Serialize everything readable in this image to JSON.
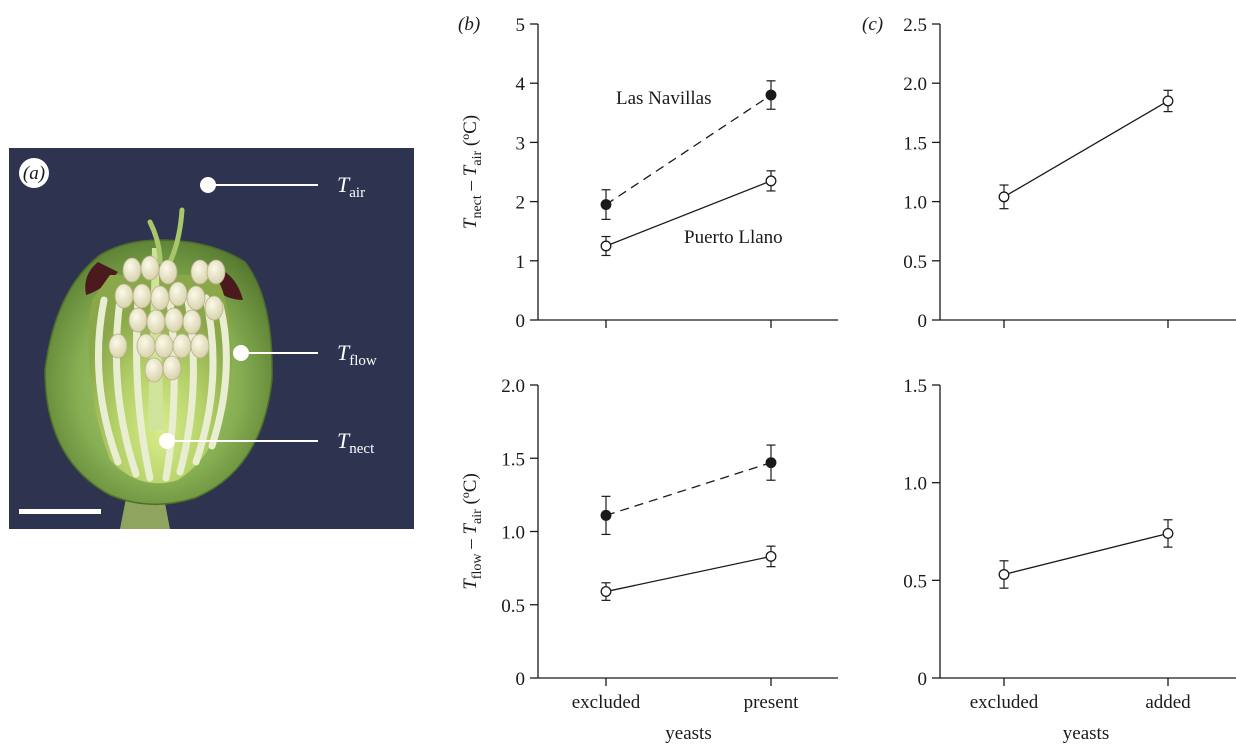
{
  "panel_a": {
    "label": "(a)",
    "markers": [
      {
        "symbol": "T",
        "sub": "air"
      },
      {
        "symbol": "T",
        "sub": "flow"
      },
      {
        "symbol": "T",
        "sub": "nect"
      }
    ],
    "colors": {
      "background": "#2e3350",
      "petal": "#7ea84c",
      "anther": "#ece8c8",
      "blotch": "#4a1a1e"
    }
  },
  "chart_data": [
    {
      "id": "b_top",
      "type": "line",
      "panel_label": "(b)",
      "categories": [
        "excluded",
        "present"
      ],
      "ylabel": {
        "symbol1": "T",
        "sub1": "nect",
        "minus": " – ",
        "symbol2": "T",
        "sub2": "air",
        "unit": " (ºC)"
      },
      "ylim": [
        0,
        5
      ],
      "yticks": [
        0,
        1,
        2,
        3,
        4,
        5
      ],
      "ytick_labels": [
        "0",
        "1",
        "2",
        "3",
        "4",
        "5"
      ],
      "show_xtick_labels": false,
      "series": [
        {
          "name": "Las Navillas",
          "marker": "filled",
          "line": "dashed",
          "values": [
            1.95,
            3.8
          ],
          "errors": [
            0.25,
            0.24
          ]
        },
        {
          "name": "Puerto Llano",
          "marker": "open",
          "line": "solid",
          "values": [
            1.25,
            2.35
          ],
          "errors": [
            0.16,
            0.17
          ]
        }
      ]
    },
    {
      "id": "c_top",
      "type": "line",
      "panel_label": "(c)",
      "categories": [
        "excluded",
        "added"
      ],
      "ylim": [
        0,
        2.5
      ],
      "yticks": [
        0,
        0.5,
        1,
        1.5,
        2,
        2.5
      ],
      "ytick_labels": [
        "0",
        "0.5",
        "1.0",
        "1.5",
        "2.0",
        "2.5"
      ],
      "show_xtick_labels": false,
      "series": [
        {
          "marker": "open",
          "line": "solid",
          "values": [
            1.04,
            1.85
          ],
          "errors": [
            0.1,
            0.09
          ]
        }
      ]
    },
    {
      "id": "b_bottom",
      "type": "line",
      "categories": [
        "excluded",
        "present"
      ],
      "xlabel": "yeasts",
      "ylabel": {
        "symbol1": "T",
        "sub1": "flow",
        "minus": " – ",
        "symbol2": "T",
        "sub2": "air",
        "unit": " (ºC)"
      },
      "ylim": [
        0,
        2
      ],
      "yticks": [
        0,
        0.5,
        1,
        1.5,
        2
      ],
      "ytick_labels": [
        "0",
        "0.5",
        "1.0",
        "1.5",
        "2.0"
      ],
      "show_xtick_labels": true,
      "series": [
        {
          "marker": "filled",
          "line": "dashed",
          "values": [
            1.11,
            1.47
          ],
          "errors": [
            0.13,
            0.12
          ]
        },
        {
          "marker": "open",
          "line": "solid",
          "values": [
            0.59,
            0.83
          ],
          "errors": [
            0.06,
            0.07
          ]
        }
      ]
    },
    {
      "id": "c_bottom",
      "type": "line",
      "categories": [
        "excluded",
        "added"
      ],
      "xlabel": "yeasts",
      "ylim": [
        0,
        1.5
      ],
      "yticks": [
        0,
        0.5,
        1,
        1.5
      ],
      "ytick_labels": [
        "0",
        "0.5",
        "1.0",
        "1.5"
      ],
      "show_xtick_labels": true,
      "series": [
        {
          "marker": "open",
          "line": "solid",
          "values": [
            0.53,
            0.74
          ],
          "errors": [
            0.07,
            0.07
          ]
        }
      ]
    }
  ]
}
